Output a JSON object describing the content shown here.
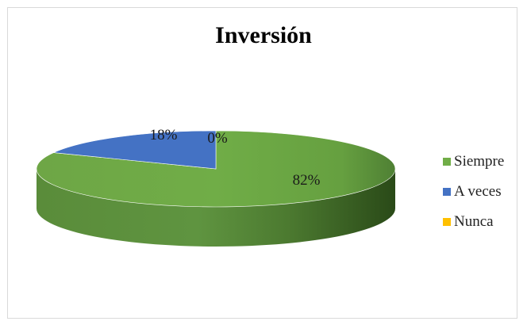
{
  "chart_data": {
    "type": "pie",
    "title": "Inversión",
    "categories": [
      "Siempre",
      "A veces",
      "Nunca"
    ],
    "values": [
      82,
      18,
      0
    ],
    "data_labels": [
      "82%",
      "18%",
      "0%"
    ],
    "colors": [
      "#70ad47",
      "#4472c4",
      "#ffc000"
    ],
    "legend_position": "right",
    "style": "3d"
  }
}
